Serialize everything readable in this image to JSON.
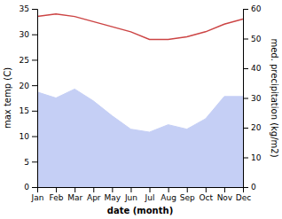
{
  "chart_data": {
    "type": "line",
    "categories": [
      "Jan",
      "Feb",
      "Mar",
      "Apr",
      "May",
      "Jun",
      "Jul",
      "Aug",
      "Sep",
      "Oct",
      "Nov",
      "Dec"
    ],
    "series": [
      {
        "type": "area",
        "axis": "y2",
        "color": "#c5cff5",
        "values": [
          32.0,
          30.0,
          33.0,
          29.0,
          24.0,
          19.5,
          18.5,
          21.0,
          19.5,
          23.0,
          30.5,
          30.5
        ]
      },
      {
        "type": "line",
        "color": "#cc4444",
        "values": [
          33.5,
          34.0,
          33.5,
          32.5,
          31.5,
          30.5,
          29.0,
          29.0,
          29.5,
          30.5,
          32.0,
          33.0
        ]
      }
    ],
    "ylim": [
      0,
      35
    ],
    "yticks": [
      0,
      5,
      10,
      15,
      20,
      25,
      30,
      35
    ],
    "y2lim": [
      0,
      60
    ],
    "y2ticks": [
      0,
      10,
      20,
      30,
      40,
      50,
      60
    ],
    "ylabel": "max temp (C)",
    "y2label": "med. precipitation (kg/m2)",
    "xlabel": "date (month)",
    "grid": false
  }
}
